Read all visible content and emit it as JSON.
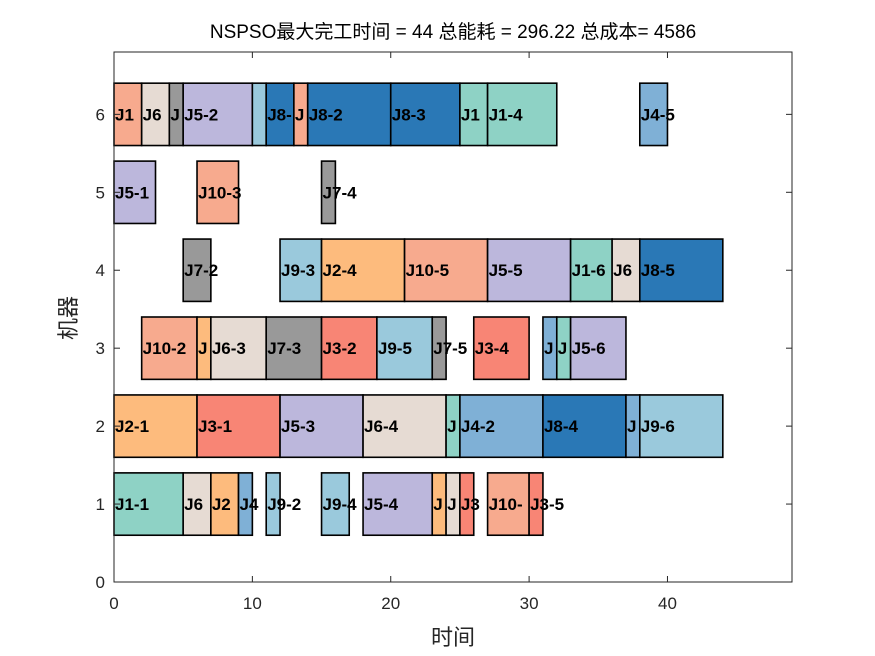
{
  "chart_data": {
    "type": "gantt",
    "title": "NSPSO最大完工时间 = 44 总能耗 = 296.22 总成本= 4586",
    "xlabel": "时间",
    "ylabel": "机器",
    "xlim": [
      0,
      49
    ],
    "ylim": [
      0,
      6.8
    ],
    "xticks": [
      0,
      10,
      20,
      30,
      40
    ],
    "yticks": [
      0,
      1,
      2,
      3,
      4,
      5,
      6
    ],
    "bar_height": 0.8,
    "grid": false,
    "job_colors": {
      "J1": "#8ed2c5",
      "J2": "#fdbb7d",
      "J3": "#f88575",
      "J4": "#7fb0d6",
      "J5": "#bcb7dc",
      "J6": "#e6dbd3",
      "J7": "#999999",
      "J8": "#2a78b6",
      "J9": "#9ac9dc",
      "J10": "#f7aa8e"
    },
    "tasks": [
      {
        "machine": 1,
        "job": "J1",
        "start": 0,
        "end": 5,
        "label": "J1-1"
      },
      {
        "machine": 1,
        "job": "J6",
        "start": 5,
        "end": 7,
        "label": "J6"
      },
      {
        "machine": 1,
        "job": "J2",
        "start": 7,
        "end": 9,
        "label": "J2"
      },
      {
        "machine": 1,
        "job": "J4",
        "start": 9,
        "end": 10,
        "label": "J4"
      },
      {
        "machine": 1,
        "job": "J9",
        "start": 11,
        "end": 12,
        "label": "J9-2"
      },
      {
        "machine": 1,
        "job": "J9",
        "start": 15,
        "end": 17,
        "label": "J9-4"
      },
      {
        "machine": 1,
        "job": "J5",
        "start": 18,
        "end": 23,
        "label": "J5-4"
      },
      {
        "machine": 1,
        "job": "J2",
        "start": 23,
        "end": 24,
        "label": "J"
      },
      {
        "machine": 1,
        "job": "J6",
        "start": 24,
        "end": 25,
        "label": "J"
      },
      {
        "machine": 1,
        "job": "J3",
        "start": 25,
        "end": 26,
        "label": "J3"
      },
      {
        "machine": 1,
        "job": "J10",
        "start": 27,
        "end": 30,
        "label": "J10-"
      },
      {
        "machine": 1,
        "job": "J3",
        "start": 30,
        "end": 31,
        "label": "J3-5"
      },
      {
        "machine": 2,
        "job": "J2",
        "start": 0,
        "end": 6,
        "label": "J2-1"
      },
      {
        "machine": 2,
        "job": "J3",
        "start": 6,
        "end": 12,
        "label": "J3-1"
      },
      {
        "machine": 2,
        "job": "J5",
        "start": 12,
        "end": 18,
        "label": "J5-3"
      },
      {
        "machine": 2,
        "job": "J6",
        "start": 18,
        "end": 24,
        "label": "J6-4"
      },
      {
        "machine": 2,
        "job": "J1",
        "start": 24,
        "end": 25,
        "label": "J"
      },
      {
        "machine": 2,
        "job": "J4",
        "start": 25,
        "end": 31,
        "label": "J4-2"
      },
      {
        "machine": 2,
        "job": "J8",
        "start": 31,
        "end": 37,
        "label": "J8-4"
      },
      {
        "machine": 2,
        "job": "J4",
        "start": 37,
        "end": 38,
        "label": "J"
      },
      {
        "machine": 2,
        "job": "J9",
        "start": 38,
        "end": 44,
        "label": "J9-6"
      },
      {
        "machine": 3,
        "job": "J10",
        "start": 2,
        "end": 6,
        "label": "J10-2"
      },
      {
        "machine": 3,
        "job": "J2",
        "start": 6,
        "end": 7,
        "label": "J"
      },
      {
        "machine": 3,
        "job": "J6",
        "start": 7,
        "end": 11,
        "label": "J6-3"
      },
      {
        "machine": 3,
        "job": "J7",
        "start": 11,
        "end": 15,
        "label": "J7-3"
      },
      {
        "machine": 3,
        "job": "J3",
        "start": 15,
        "end": 19,
        "label": "J3-2"
      },
      {
        "machine": 3,
        "job": "J9",
        "start": 19,
        "end": 23,
        "label": "J9-5"
      },
      {
        "machine": 3,
        "job": "J7",
        "start": 23,
        "end": 24,
        "label": "J7-5"
      },
      {
        "machine": 3,
        "job": "J3",
        "start": 26,
        "end": 30,
        "label": "J3-4"
      },
      {
        "machine": 3,
        "job": "J4",
        "start": 31,
        "end": 32,
        "label": "J"
      },
      {
        "machine": 3,
        "job": "J1",
        "start": 32,
        "end": 33,
        "label": "J"
      },
      {
        "machine": 3,
        "job": "J5",
        "start": 33,
        "end": 37,
        "label": "J5-6"
      },
      {
        "machine": 4,
        "job": "J7",
        "start": 5,
        "end": 7,
        "label": "J7-2"
      },
      {
        "machine": 4,
        "job": "J9",
        "start": 12,
        "end": 15,
        "label": "J9-3"
      },
      {
        "machine": 4,
        "job": "J2",
        "start": 15,
        "end": 21,
        "label": "J2-4"
      },
      {
        "machine": 4,
        "job": "J10",
        "start": 21,
        "end": 27,
        "label": "J10-5"
      },
      {
        "machine": 4,
        "job": "J5",
        "start": 27,
        "end": 33,
        "label": "J5-5"
      },
      {
        "machine": 4,
        "job": "J1",
        "start": 33,
        "end": 36,
        "label": "J1-6"
      },
      {
        "machine": 4,
        "job": "J6",
        "start": 36,
        "end": 38,
        "label": "J6"
      },
      {
        "machine": 4,
        "job": "J8",
        "start": 38,
        "end": 44,
        "label": "J8-5"
      },
      {
        "machine": 5,
        "job": "J5",
        "start": 0,
        "end": 3,
        "label": "J5-1"
      },
      {
        "machine": 5,
        "job": "J10",
        "start": 6,
        "end": 9,
        "label": "J10-3"
      },
      {
        "machine": 5,
        "job": "J7",
        "start": 15,
        "end": 16,
        "label": "J7-4"
      },
      {
        "machine": 6,
        "job": "J10",
        "start": 0,
        "end": 2,
        "label": "J1"
      },
      {
        "machine": 6,
        "job": "J6",
        "start": 2,
        "end": 4,
        "label": "J6"
      },
      {
        "machine": 6,
        "job": "J7",
        "start": 4,
        "end": 5,
        "label": "J"
      },
      {
        "machine": 6,
        "job": "J5",
        "start": 5,
        "end": 10,
        "label": "J5-2"
      },
      {
        "machine": 6,
        "job": "J9",
        "start": 10,
        "end": 11,
        "label": ""
      },
      {
        "machine": 6,
        "job": "J8",
        "start": 11,
        "end": 13,
        "label": "J8-"
      },
      {
        "machine": 6,
        "job": "J10",
        "start": 13,
        "end": 14,
        "label": "J"
      },
      {
        "machine": 6,
        "job": "J8",
        "start": 14,
        "end": 20,
        "label": "J8-2"
      },
      {
        "machine": 6,
        "job": "J8",
        "start": 20,
        "end": 25,
        "label": "J8-3"
      },
      {
        "machine": 6,
        "job": "J1",
        "start": 25,
        "end": 27,
        "label": "J1"
      },
      {
        "machine": 6,
        "job": "J1",
        "start": 27,
        "end": 32,
        "label": "J1-4"
      },
      {
        "machine": 6,
        "job": "J4",
        "start": 38,
        "end": 40,
        "label": "J4-5"
      }
    ]
  }
}
